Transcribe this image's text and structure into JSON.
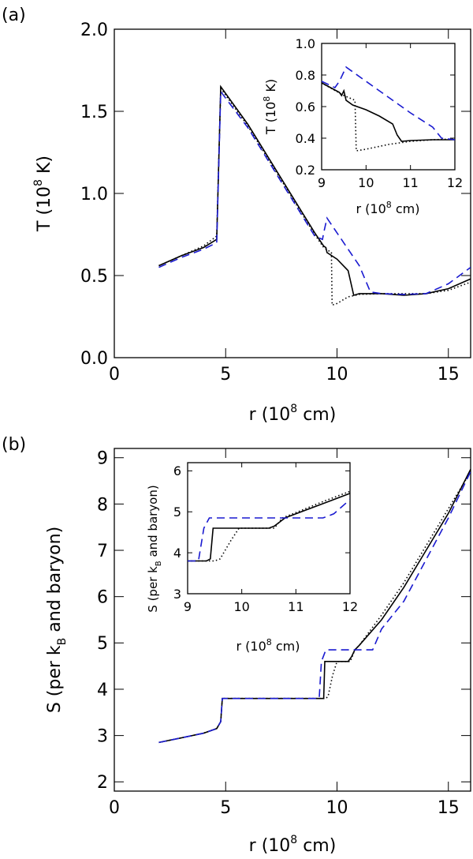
{
  "chart_data": [
    {
      "id": "a",
      "type": "line",
      "panel_label": "(a)",
      "xlabel": "r (10",
      "xlabel_exp": "8",
      "xlabel_tail": " cm)",
      "ylabel": "T (10",
      "ylabel_exp": "8",
      "ylabel_tail": " K)",
      "xlim": [
        0,
        16
      ],
      "ylim": [
        0,
        2
      ],
      "xticks": [
        0,
        5,
        10,
        15
      ],
      "xtick_labels": [
        "0",
        "5",
        "10",
        "15"
      ],
      "yticks": [
        0,
        0.5,
        1,
        1.5,
        2
      ],
      "ytick_labels": [
        "0.0",
        "0.5",
        "1.0",
        "1.5",
        "2.0"
      ],
      "series": [
        {
          "name": "solid",
          "color": "#000000",
          "x": [
            2,
            3,
            4,
            4.6,
            4.78,
            6,
            7,
            8,
            9,
            9.35,
            9.4,
            9.5,
            9.55,
            10,
            10.5,
            10.75,
            11,
            11.5,
            12,
            12.5,
            13,
            14,
            15,
            16
          ],
          "y": [
            0.56,
            0.62,
            0.67,
            0.72,
            1.65,
            1.42,
            1.2,
            0.98,
            0.76,
            0.69,
            0.68,
            0.67,
            0.64,
            0.6,
            0.53,
            0.38,
            0.39,
            0.39,
            0.39,
            0.385,
            0.38,
            0.39,
            0.42,
            0.48
          ]
        },
        {
          "name": "dotted",
          "color": "#000000",
          "x": [
            2,
            3,
            4,
            4.6,
            4.78,
            6,
            7,
            8,
            9,
            9.4,
            9.75,
            9.78,
            10,
            10.5,
            11,
            12,
            13,
            14,
            15,
            16
          ],
          "y": [
            0.56,
            0.62,
            0.68,
            0.74,
            1.64,
            1.41,
            1.19,
            0.97,
            0.75,
            0.67,
            0.64,
            0.32,
            0.33,
            0.37,
            0.385,
            0.39,
            0.39,
            0.39,
            0.41,
            0.46
          ]
        },
        {
          "name": "dashed",
          "color": "#1a1ad0",
          "x": [
            2,
            3,
            4,
            4.6,
            4.78,
            6,
            7,
            8,
            9,
            9.35,
            9.4,
            9.55,
            10,
            10.5,
            11,
            11.5,
            12,
            13,
            14,
            15,
            16
          ],
          "y": [
            0.55,
            0.61,
            0.66,
            0.7,
            1.62,
            1.4,
            1.18,
            0.96,
            0.74,
            0.72,
            0.76,
            0.85,
            0.76,
            0.66,
            0.56,
            0.4,
            0.39,
            0.385,
            0.39,
            0.45,
            0.55
          ]
        }
      ],
      "inset": {
        "xlabel": "r (10",
        "xlabel_exp": "8",
        "xlabel_tail": " cm)",
        "ylabel": "T (10",
        "ylabel_exp": "8",
        "ylabel_tail": " K)",
        "xlim": [
          9,
          12
        ],
        "ylim": [
          0.2,
          1.0
        ],
        "xticks": [
          9,
          10,
          11,
          12
        ],
        "xtick_labels": [
          "9",
          "10",
          "11",
          "12"
        ],
        "yticks": [
          0.2,
          0.4,
          0.6,
          0.8,
          1.0
        ],
        "ytick_labels": [
          "0.2",
          "0.4",
          "0.6",
          "0.8",
          "1.0"
        ],
        "series": [
          {
            "name": "solid",
            "color": "#000000",
            "x": [
              9,
              9.2,
              9.4,
              9.45,
              9.5,
              9.55,
              9.7,
              10,
              10.3,
              10.6,
              10.7,
              10.8,
              11,
              11.5,
              12
            ],
            "y": [
              0.75,
              0.72,
              0.69,
              0.67,
              0.7,
              0.64,
              0.61,
              0.58,
              0.54,
              0.49,
              0.42,
              0.38,
              0.385,
              0.39,
              0.39
            ]
          },
          {
            "name": "dotted",
            "color": "#000000",
            "x": [
              9,
              9.5,
              9.75,
              9.78,
              10,
              10.5,
              11,
              11.5,
              12
            ],
            "y": [
              0.75,
              0.67,
              0.64,
              0.32,
              0.33,
              0.36,
              0.38,
              0.39,
              0.395
            ]
          },
          {
            "name": "dashed",
            "color": "#1a1ad0",
            "x": [
              9,
              9.3,
              9.4,
              9.55,
              10,
              10.5,
              11,
              11.5,
              11.7,
              12
            ],
            "y": [
              0.76,
              0.72,
              0.76,
              0.85,
              0.76,
              0.66,
              0.56,
              0.47,
              0.4,
              0.39
            ]
          }
        ]
      }
    },
    {
      "id": "b",
      "type": "line",
      "panel_label": "(b)",
      "xlabel": "r (10",
      "xlabel_exp": "8",
      "xlabel_tail": " cm)",
      "ylabel": "S (per k",
      "ylabel_sub": "B",
      "ylabel_tail": " and baryon)",
      "xlim": [
        0,
        16
      ],
      "ylim": [
        1.8,
        9.2
      ],
      "xticks": [
        0,
        5,
        10,
        15
      ],
      "xtick_labels": [
        "0",
        "5",
        "10",
        "15"
      ],
      "yticks": [
        2,
        3,
        4,
        5,
        6,
        7,
        8,
        9
      ],
      "ytick_labels": [
        "2",
        "3",
        "4",
        "5",
        "6",
        "7",
        "8",
        "9"
      ],
      "series": [
        {
          "name": "solid",
          "color": "#000000",
          "x": [
            2,
            3,
            4,
            4.6,
            4.78,
            4.85,
            6,
            8,
            9.3,
            9.4,
            9.45,
            9.55,
            10.5,
            10.65,
            10.8,
            11,
            12,
            13,
            14,
            15,
            16
          ],
          "y": [
            2.85,
            2.95,
            3.05,
            3.15,
            3.3,
            3.8,
            3.8,
            3.8,
            3.8,
            3.8,
            4.6,
            4.6,
            4.6,
            4.7,
            4.85,
            4.95,
            5.5,
            6.2,
            7.0,
            7.8,
            8.75
          ]
        },
        {
          "name": "dotted",
          "color": "#000000",
          "x": [
            2,
            3,
            4,
            4.6,
            4.78,
            4.85,
            6,
            8,
            9.5,
            9.6,
            9.8,
            10,
            10.6,
            10.8,
            11,
            12,
            13,
            14,
            15,
            16
          ],
          "y": [
            2.85,
            2.95,
            3.05,
            3.15,
            3.3,
            3.8,
            3.8,
            3.8,
            3.8,
            3.85,
            4.3,
            4.6,
            4.6,
            4.85,
            4.95,
            5.6,
            6.3,
            7.1,
            7.9,
            8.7
          ]
        },
        {
          "name": "dashed",
          "color": "#1a1ad0",
          "x": [
            2,
            3,
            4,
            4.6,
            4.78,
            4.85,
            6,
            8,
            9.2,
            9.3,
            9.5,
            10,
            11,
            11.6,
            12,
            13,
            14,
            15,
            16
          ],
          "y": [
            2.85,
            2.95,
            3.05,
            3.15,
            3.3,
            3.8,
            3.8,
            3.8,
            3.8,
            4.6,
            4.85,
            4.85,
            4.85,
            4.85,
            5.3,
            5.9,
            6.8,
            7.7,
            8.7
          ]
        }
      ],
      "inset": {
        "xlabel": "r (10",
        "xlabel_exp": "8",
        "xlabel_tail": " cm)",
        "ylabel": "S (per k",
        "ylabel_sub": "B",
        "ylabel_tail": " and baryon)",
        "xlim": [
          9,
          12
        ],
        "ylim": [
          3,
          6.2
        ],
        "xticks": [
          9,
          10,
          11,
          12
        ],
        "xtick_labels": [
          "9",
          "10",
          "11",
          "12"
        ],
        "yticks": [
          3,
          4,
          5,
          6
        ],
        "ytick_labels": [
          "3",
          "4",
          "5",
          "6"
        ],
        "series": [
          {
            "name": "solid",
            "color": "#000000",
            "x": [
              9,
              9.35,
              9.42,
              9.47,
              10.5,
              10.6,
              10.7,
              10.8,
              11,
              11.5,
              12
            ],
            "y": [
              3.8,
              3.8,
              3.85,
              4.6,
              4.6,
              4.65,
              4.75,
              4.85,
              4.95,
              5.2,
              5.45
            ]
          },
          {
            "name": "dotted",
            "color": "#000000",
            "x": [
              9,
              9.5,
              9.6,
              9.8,
              9.95,
              10.6,
              10.75,
              11,
              11.5,
              12
            ],
            "y": [
              3.8,
              3.8,
              3.85,
              4.3,
              4.6,
              4.6,
              4.85,
              4.98,
              5.25,
              5.5
            ]
          },
          {
            "name": "dashed",
            "color": "#1a1ad0",
            "x": [
              9,
              9.2,
              9.3,
              9.4,
              10,
              11,
              11.5,
              11.7,
              12
            ],
            "y": [
              3.8,
              3.8,
              4.6,
              4.85,
              4.85,
              4.85,
              4.85,
              4.95,
              5.3
            ]
          }
        ]
      }
    }
  ]
}
